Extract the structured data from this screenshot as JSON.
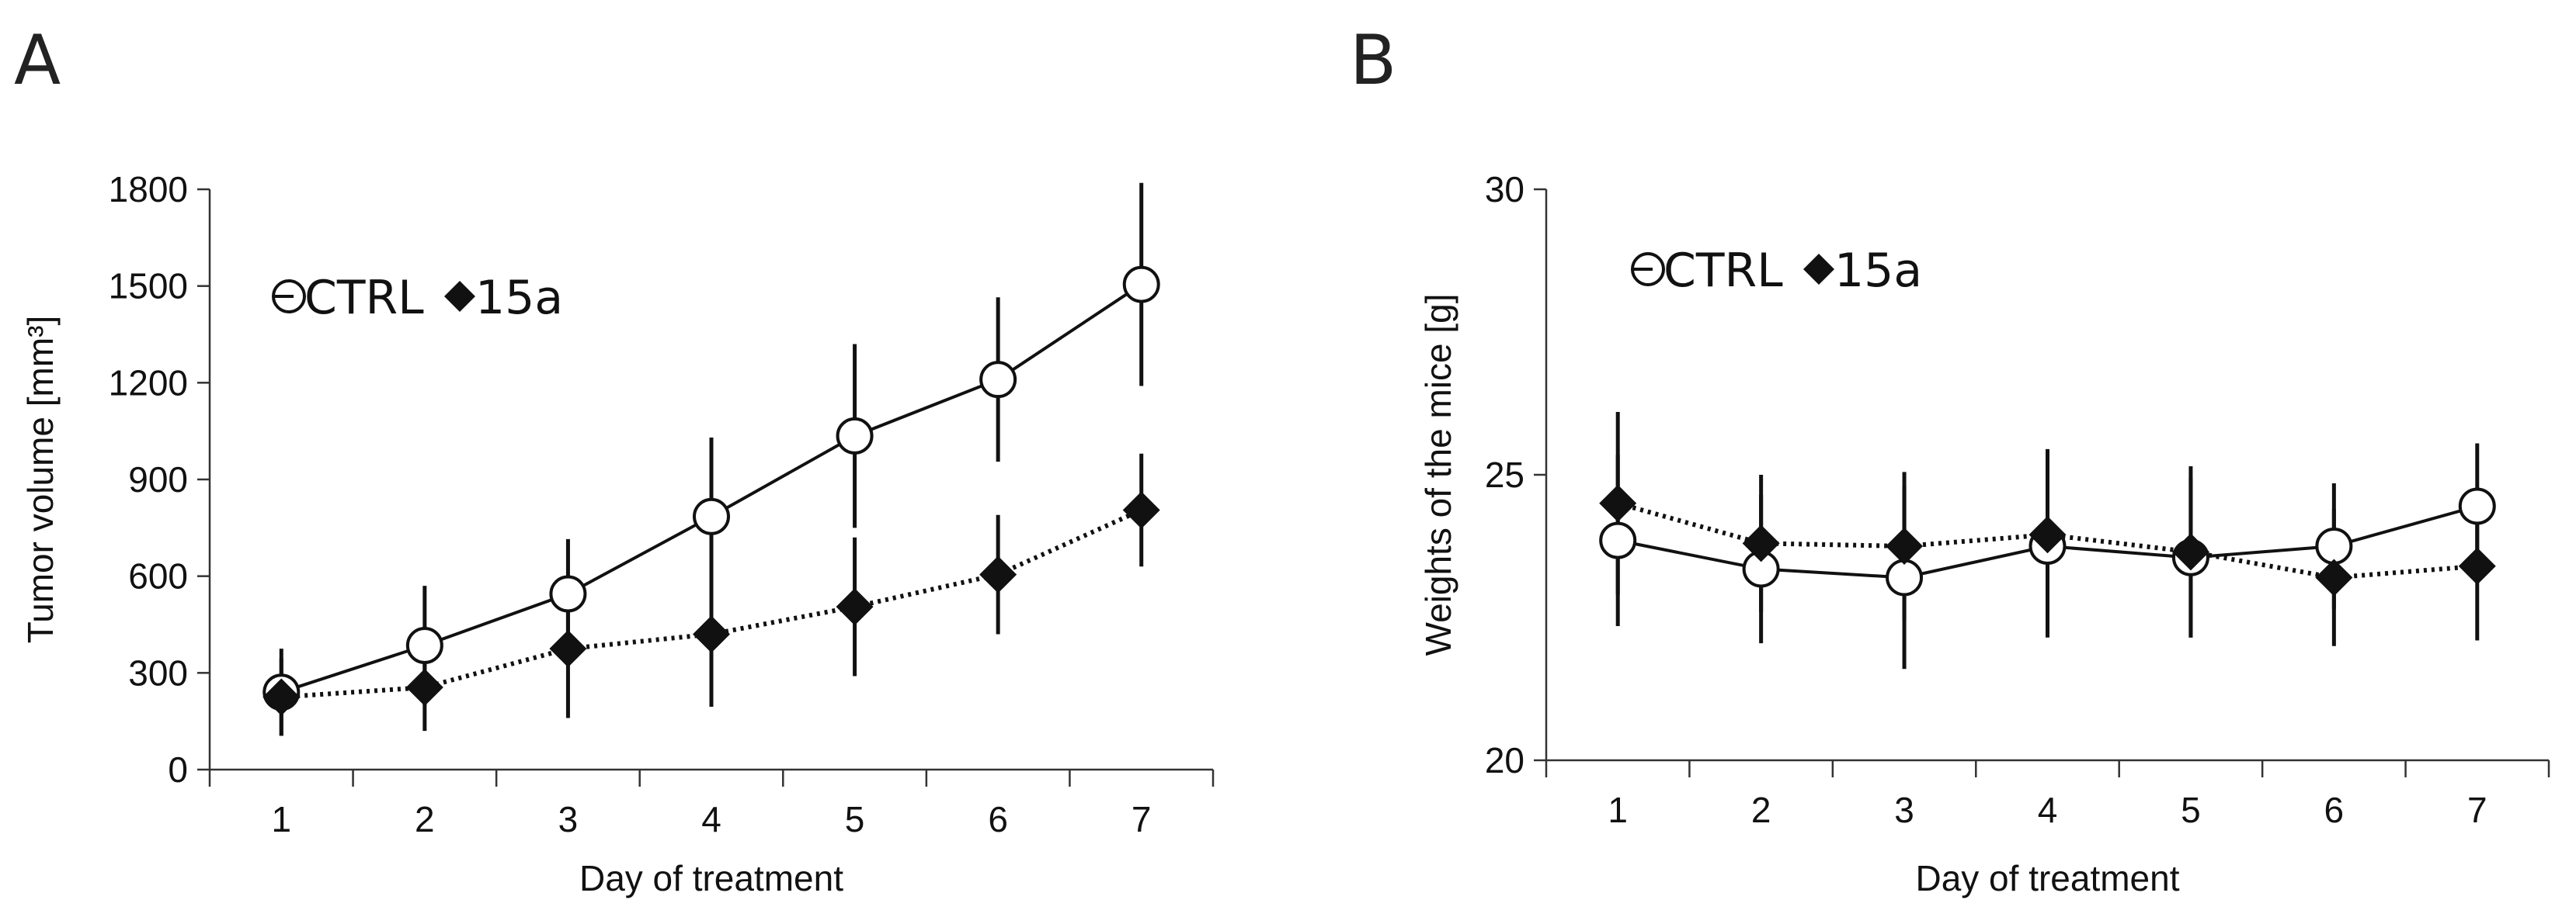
{
  "chart_data": [
    {
      "panel": "A",
      "type": "line",
      "xlabel": "Day of treatment",
      "ylabel": "Tumor volume [mm³]",
      "x": [
        1,
        2,
        3,
        4,
        5,
        6,
        7
      ],
      "xticks": [
        "1",
        "2",
        "3",
        "4",
        "5",
        "6",
        "7"
      ],
      "ylim": [
        0,
        1800
      ],
      "yticks": [
        "0",
        "300",
        "600",
        "900",
        "1200",
        "1500",
        "1800"
      ],
      "legend_position": "top-left",
      "series": [
        {
          "name": "CTRL",
          "marker": "open-circle",
          "line": "solid",
          "values": [
            240,
            385,
            545,
            785,
            1035,
            1210,
            1505
          ],
          "errors": [
            135,
            185,
            170,
            245,
            285,
            255,
            315
          ]
        },
        {
          "name": "15a",
          "marker": "filled-diamond",
          "line": "dotted",
          "values": [
            225,
            255,
            375,
            420,
            505,
            605,
            805
          ],
          "errors": [
            120,
            135,
            215,
            225,
            215,
            185,
            175
          ]
        }
      ]
    },
    {
      "panel": "B",
      "type": "line",
      "xlabel": "Day of treatment",
      "ylabel": "Weights of the mice  [g]",
      "x": [
        1,
        2,
        3,
        4,
        5,
        6,
        7
      ],
      "xticks": [
        "1",
        "2",
        "3",
        "4",
        "5",
        "6",
        "7"
      ],
      "ylim": [
        20,
        30
      ],
      "yticks": [
        "20",
        "25",
        "30"
      ],
      "legend_position": "top-left",
      "series": [
        {
          "name": "CTRL",
          "marker": "open-circle",
          "line": "solid",
          "values": [
            23.85,
            23.35,
            23.2,
            23.75,
            23.55,
            23.75,
            24.45
          ],
          "errors": [
            1.5,
            1.3,
            1.6,
            1.6,
            1.4,
            1.1,
            1.1
          ]
        },
        {
          "name": "15a",
          "marker": "filled-diamond",
          "line": "dotted",
          "values": [
            24.5,
            23.8,
            23.75,
            23.95,
            23.65,
            23.2,
            23.4
          ],
          "errors": [
            1.6,
            1.2,
            1.3,
            1.5,
            1.5,
            1.2,
            1.3
          ]
        }
      ]
    }
  ]
}
